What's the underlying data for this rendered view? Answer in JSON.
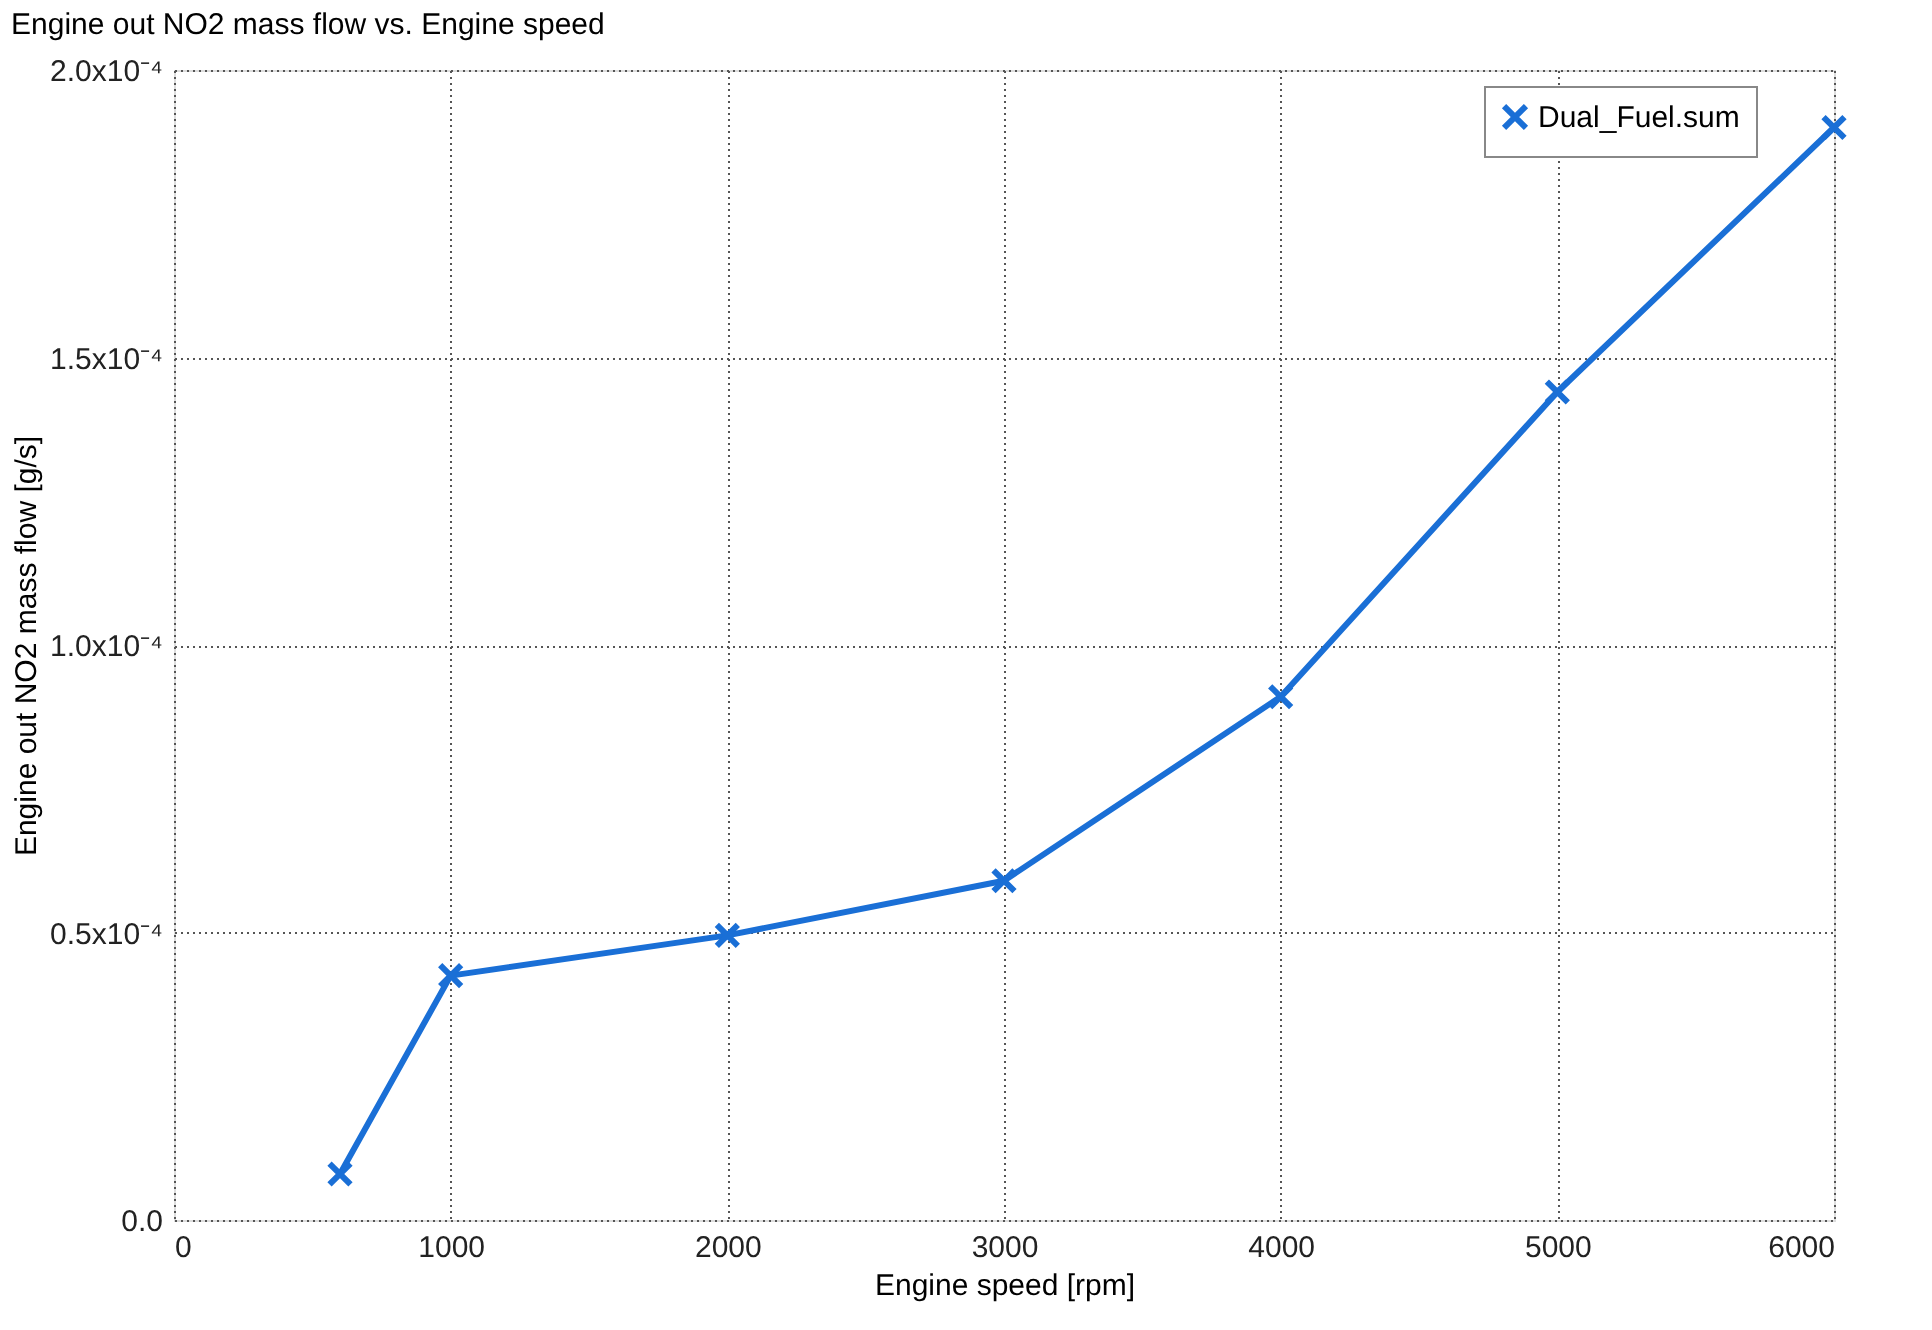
{
  "chart_data": {
    "type": "line",
    "title": "Engine out NO2 mass flow vs. Engine speed",
    "xlabel": "Engine speed  [rpm]",
    "ylabel": "Engine out NO2 mass flow  [g/s]",
    "x": [
      600,
      1000,
      2000,
      3000,
      4000,
      5000,
      6000
    ],
    "series": [
      {
        "name": "Dual_Fuel.sum",
        "color": "#1a6fd6",
        "values": [
          8e-06,
          4.25e-05,
          4.95e-05,
          5.9e-05,
          9.1e-05,
          0.000144,
          0.00019
        ]
      }
    ],
    "xlim": [
      0,
      6000
    ],
    "xticks": [
      0,
      1000,
      2000,
      3000,
      4000,
      5000,
      6000
    ],
    "ylim": [
      0,
      0.0002
    ],
    "yticks": [
      {
        "value": 0,
        "label": "0.0"
      },
      {
        "value": 5e-05,
        "label": "0.5x10⁻⁴"
      },
      {
        "value": 0.0001,
        "label": "1.0x10⁻⁴"
      },
      {
        "value": 0.00015,
        "label": "1.5x10⁻⁴"
      },
      {
        "value": 0.0002,
        "label": "2.0x10⁻⁴"
      }
    ],
    "grid": true,
    "legend": "top right",
    "marker": "cross",
    "line_style": "solid"
  }
}
